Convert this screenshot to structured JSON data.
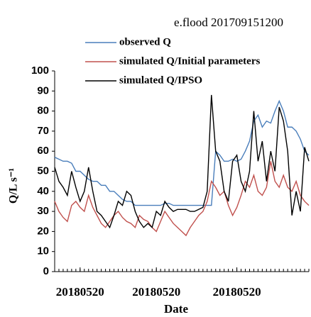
{
  "chart_data": {
    "type": "line",
    "title": "e.flood 201709151200",
    "x_label": "Date",
    "y_label": "Q/L s⁻¹",
    "xlim": [
      0,
      60
    ],
    "ylim": [
      0,
      100
    ],
    "yticks": [
      0,
      10,
      20,
      30,
      40,
      50,
      60,
      70,
      80,
      90,
      100
    ],
    "xticks": [
      {
        "value": 6,
        "label": "20180520"
      },
      {
        "value": 24,
        "label": "20180520"
      },
      {
        "value": 43,
        "label": "20180520"
      }
    ],
    "x": [
      0,
      1,
      2,
      3,
      4,
      5,
      6,
      7,
      8,
      9,
      10,
      11,
      12,
      13,
      14,
      15,
      16,
      17,
      18,
      19,
      20,
      21,
      22,
      23,
      24,
      25,
      26,
      27,
      28,
      29,
      30,
      31,
      32,
      33,
      34,
      35,
      36,
      37,
      38,
      39,
      40,
      41,
      42,
      43,
      44,
      45,
      46,
      47,
      48,
      49,
      50,
      51,
      52,
      53,
      54,
      55,
      56,
      57,
      58,
      59,
      60
    ],
    "series": [
      {
        "name": "observed Q",
        "color": "#4a7ebb",
        "values": [
          57,
          56,
          55,
          55,
          54,
          50,
          50,
          48,
          46,
          45,
          45,
          43,
          43,
          40,
          40,
          38,
          36,
          35,
          35,
          33,
          33,
          33,
          33,
          33,
          33,
          33,
          34,
          34,
          33,
          33,
          33,
          33,
          33,
          33,
          33,
          33,
          33,
          33,
          60,
          58,
          55,
          55,
          56,
          55,
          56,
          60,
          65,
          75,
          78,
          72,
          75,
          74,
          80,
          85,
          80,
          72,
          72,
          70,
          66,
          60,
          58
        ]
      },
      {
        "name": "simulated Q/Initial parameters",
        "color": "#c0504d",
        "values": [
          35,
          30,
          27,
          25,
          33,
          35,
          32,
          30,
          38,
          32,
          28,
          24,
          22,
          25,
          28,
          30,
          27,
          25,
          24,
          22,
          28,
          26,
          25,
          22,
          20,
          25,
          30,
          27,
          24,
          22,
          20,
          18,
          22,
          25,
          28,
          30,
          35,
          45,
          42,
          38,
          40,
          33,
          28,
          32,
          38,
          45,
          42,
          48,
          40,
          38,
          42,
          55,
          45,
          42,
          48,
          42,
          40,
          45,
          38,
          35,
          33
        ]
      },
      {
        "name": "simulated Q/IPSO",
        "color": "#000000",
        "values": [
          52,
          45,
          42,
          38,
          50,
          42,
          35,
          40,
          52,
          40,
          30,
          28,
          25,
          22,
          28,
          35,
          33,
          40,
          38,
          30,
          25,
          22,
          24,
          22,
          30,
          28,
          35,
          32,
          30,
          31,
          31,
          31,
          30,
          30,
          31,
          32,
          40,
          88,
          60,
          55,
          40,
          35,
          55,
          58,
          45,
          40,
          50,
          80,
          55,
          65,
          45,
          60,
          50,
          82,
          75,
          60,
          28,
          40,
          30,
          62,
          55
        ]
      }
    ]
  }
}
